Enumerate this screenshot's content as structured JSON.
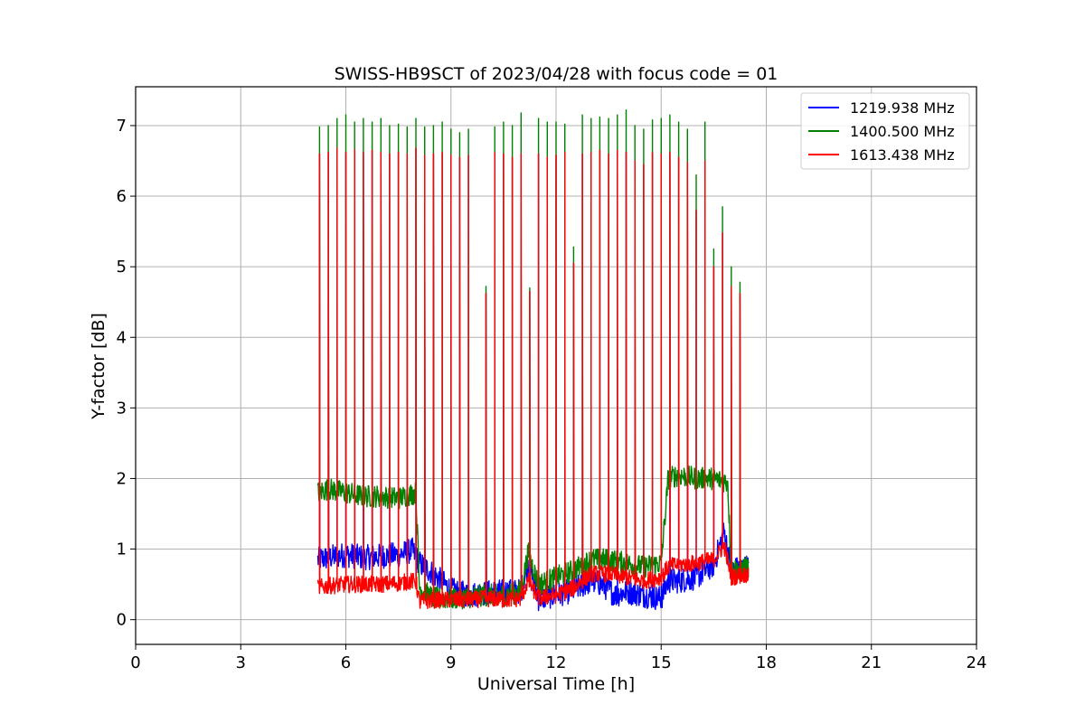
{
  "chart_data": {
    "type": "line",
    "title": "SWISS-HB9SCT of 2023/04/28 with focus code = 01",
    "xlabel": "Universal Time [h]",
    "ylabel": "Y-factor [dB]",
    "xlim": [
      0,
      24
    ],
    "ylim": [
      -0.35,
      7.55
    ],
    "xticks": [
      0,
      3,
      6,
      9,
      12,
      15,
      18,
      21,
      24
    ],
    "xtick_labels": [
      "0",
      "3",
      "6",
      "9",
      "12",
      "15",
      "18",
      "21",
      "24"
    ],
    "yticks": [
      0,
      1,
      2,
      3,
      4,
      5,
      6,
      7
    ],
    "ytick_labels": [
      "0",
      "1",
      "2",
      "3",
      "4",
      "5",
      "6",
      "7"
    ],
    "grid": true,
    "legend_position": "top-right",
    "calibration_spikes": {
      "x": [
        5.25,
        5.5,
        5.75,
        6.0,
        6.25,
        6.5,
        6.75,
        7.0,
        7.25,
        7.5,
        7.75,
        8.0,
        8.25,
        8.5,
        8.75,
        9.0,
        9.25,
        9.5,
        10.0,
        10.25,
        10.5,
        10.75,
        11.0,
        11.25,
        11.5,
        11.75,
        12.0,
        12.25,
        12.5,
        12.75,
        13.0,
        13.25,
        13.5,
        13.75,
        14.0,
        14.25,
        14.5,
        14.75,
        15.0,
        15.25,
        15.5,
        15.75,
        16.0,
        16.25,
        16.5,
        16.75,
        17.0,
        17.25
      ],
      "green": [
        6.98,
        7.0,
        7.1,
        7.15,
        7.05,
        7.1,
        7.05,
        7.1,
        7.0,
        7.02,
        6.98,
        7.1,
        6.98,
        7.0,
        7.05,
        6.95,
        6.9,
        6.95,
        4.72,
        6.98,
        7.05,
        7.0,
        7.18,
        4.7,
        7.1,
        7.05,
        7.05,
        7.02,
        5.28,
        7.15,
        7.1,
        7.12,
        7.1,
        7.15,
        7.22,
        7.0,
        6.95,
        7.08,
        7.1,
        7.15,
        7.05,
        6.95,
        6.3,
        7.05,
        5.25,
        5.85,
        5.0,
        4.78
      ],
      "red": [
        6.6,
        6.62,
        6.68,
        6.62,
        6.66,
        6.62,
        6.65,
        6.62,
        6.6,
        6.62,
        6.6,
        6.68,
        6.58,
        6.6,
        6.62,
        6.58,
        6.55,
        6.58,
        4.62,
        6.62,
        6.6,
        6.55,
        6.6,
        4.65,
        6.6,
        6.55,
        6.58,
        6.62,
        5.05,
        6.6,
        6.62,
        6.65,
        6.6,
        6.65,
        6.62,
        6.5,
        6.45,
        6.62,
        6.6,
        6.62,
        6.55,
        6.48,
        5.8,
        6.5,
        5.0,
        5.48,
        4.72,
        4.62
      ]
    },
    "series": [
      {
        "name": "1219.938 MHz",
        "color": "#0000ff",
        "baseline": {
          "x": [
            5.2,
            5.5,
            6.0,
            6.5,
            7.0,
            7.5,
            7.9,
            8.1,
            8.5,
            9.0,
            9.5,
            10.0,
            10.5,
            11.0,
            11.2,
            11.5,
            12.0,
            12.5,
            13.0,
            13.3,
            13.7,
            14.0,
            14.5,
            15.0,
            15.2,
            15.5,
            16.0,
            16.5,
            16.8,
            17.0,
            17.5
          ],
          "y": [
            0.85,
            0.88,
            0.92,
            0.88,
            0.9,
            0.92,
            0.98,
            0.8,
            0.65,
            0.42,
            0.35,
            0.38,
            0.4,
            0.4,
            0.8,
            0.3,
            0.35,
            0.42,
            0.55,
            0.5,
            0.35,
            0.4,
            0.35,
            0.3,
            0.55,
            0.55,
            0.6,
            0.78,
            1.25,
            0.7,
            0.75
          ]
        },
        "noise": 0.18
      },
      {
        "name": "1400.500 MHz",
        "color": "#008000",
        "baseline": {
          "x": [
            5.2,
            5.5,
            6.0,
            6.5,
            7.0,
            7.5,
            8.0,
            8.1,
            8.5,
            9.0,
            9.5,
            10.0,
            10.5,
            11.0,
            11.2,
            11.5,
            12.0,
            12.5,
            13.0,
            13.5,
            14.0,
            14.5,
            15.0,
            15.2,
            15.5,
            16.0,
            16.5,
            16.9,
            17.0,
            17.5
          ],
          "y": [
            1.8,
            1.85,
            1.8,
            1.75,
            1.75,
            1.72,
            1.8,
            0.45,
            0.3,
            0.3,
            0.32,
            0.35,
            0.35,
            0.4,
            0.95,
            0.5,
            0.6,
            0.7,
            0.85,
            0.85,
            0.8,
            0.75,
            0.8,
            2.0,
            2.05,
            2.0,
            2.0,
            1.95,
            0.7,
            0.75
          ]
        },
        "noise": 0.16
      },
      {
        "name": "1613.438 MHz",
        "color": "#ff0000",
        "baseline": {
          "x": [
            5.2,
            5.5,
            6.0,
            6.5,
            7.0,
            7.5,
            8.0,
            8.1,
            8.5,
            9.0,
            9.5,
            10.0,
            10.5,
            11.0,
            11.2,
            11.5,
            12.0,
            12.5,
            13.0,
            13.5,
            14.0,
            14.5,
            15.0,
            15.2,
            15.5,
            16.0,
            16.5,
            16.8,
            17.0,
            17.5
          ],
          "y": [
            0.45,
            0.48,
            0.5,
            0.5,
            0.5,
            0.52,
            0.55,
            0.25,
            0.28,
            0.28,
            0.28,
            0.3,
            0.28,
            0.3,
            0.55,
            0.3,
            0.35,
            0.45,
            0.65,
            0.65,
            0.6,
            0.55,
            0.6,
            0.75,
            0.78,
            0.8,
            0.85,
            1.05,
            0.6,
            0.65
          ]
        },
        "noise": 0.12
      }
    ]
  }
}
